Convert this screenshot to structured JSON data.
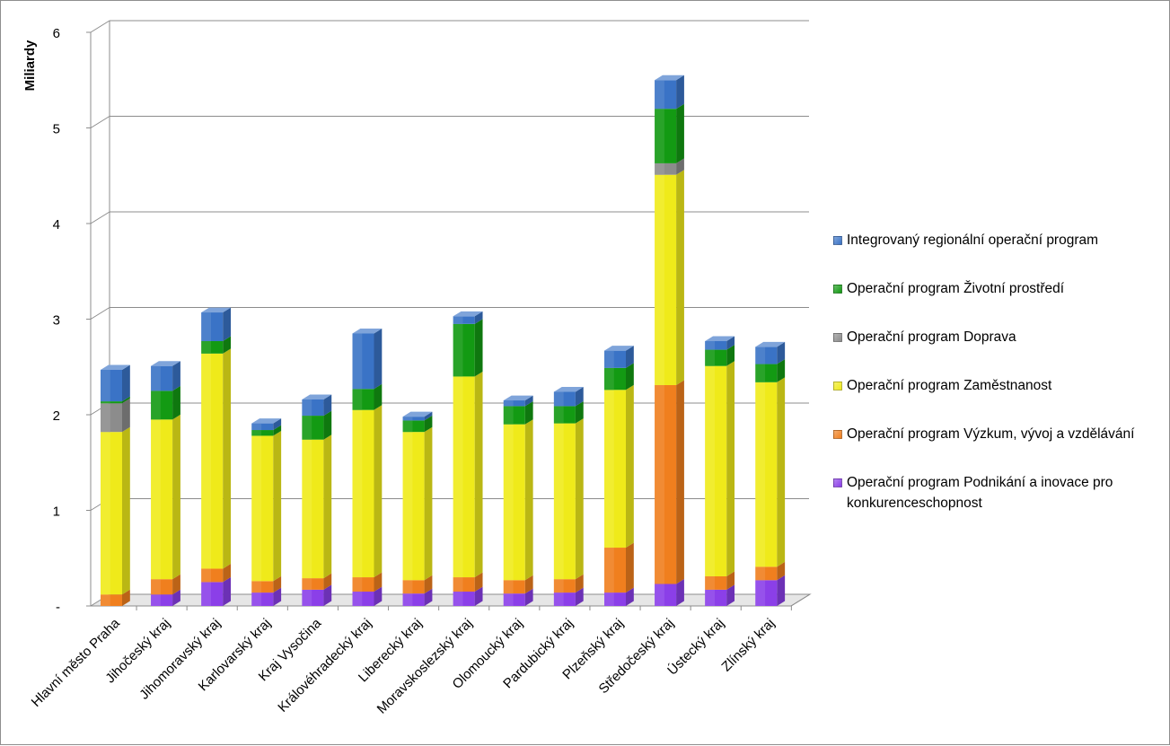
{
  "chart_data": {
    "type": "bar",
    "stacked": true,
    "three_d": true,
    "ylabel": "Miliardy",
    "ylim": [
      0,
      6
    ],
    "yticks": [
      "-",
      "1",
      "2",
      "3",
      "4",
      "5",
      "6"
    ],
    "grid": true,
    "legend_position": "right",
    "categories": [
      "Hlavní město Praha",
      "Jihočeský kraj",
      "Jihomoravský kraj",
      "Karlovarský kraj",
      "Kraj Vysočina",
      "Královéhradecký kraj",
      "Liberecký kraj",
      "Moravskoslezský kraj",
      "Olomoucký kraj",
      "Pardubický kraj",
      "Plzeňský kraj",
      "Středočeský kraj",
      "Ústecký kraj",
      "Zlínský kraj"
    ],
    "series": [
      {
        "name": "Operační program Podnikání a inovace pro konkurenceschopnost",
        "color": "#8B3FE8",
        "values": [
          0.0,
          0.12,
          0.25,
          0.14,
          0.17,
          0.15,
          0.13,
          0.15,
          0.13,
          0.14,
          0.14,
          0.23,
          0.17,
          0.27
        ]
      },
      {
        "name": "Operační program Výzkum, vývoj a vzdělávání",
        "color": "#F07F1E",
        "values": [
          0.12,
          0.16,
          0.14,
          0.12,
          0.12,
          0.15,
          0.14,
          0.15,
          0.14,
          0.14,
          0.47,
          2.08,
          0.14,
          0.14
        ]
      },
      {
        "name": "Operační program Zaměstnanost",
        "color": "#EFEA1A",
        "values": [
          1.7,
          1.67,
          2.25,
          1.52,
          1.45,
          1.75,
          1.55,
          2.1,
          1.63,
          1.63,
          1.65,
          2.2,
          2.2,
          1.93
        ]
      },
      {
        "name": "Operační program Doprava",
        "color": "#8C8C8C",
        "values": [
          0.3,
          0.0,
          0.0,
          0.0,
          0.0,
          0.0,
          0.0,
          0.0,
          0.0,
          0.0,
          0.0,
          0.12,
          0.0,
          0.0
        ]
      },
      {
        "name": "Operační program Životní prostředí",
        "color": "#139A13",
        "values": [
          0.02,
          0.3,
          0.13,
          0.06,
          0.25,
          0.22,
          0.12,
          0.55,
          0.19,
          0.18,
          0.23,
          0.57,
          0.17,
          0.19
        ]
      },
      {
        "name": "Integrovaný regionální operační program",
        "color": "#3A73C6",
        "values": [
          0.33,
          0.26,
          0.3,
          0.07,
          0.17,
          0.58,
          0.04,
          0.08,
          0.06,
          0.15,
          0.18,
          0.3,
          0.09,
          0.18
        ]
      }
    ]
  }
}
